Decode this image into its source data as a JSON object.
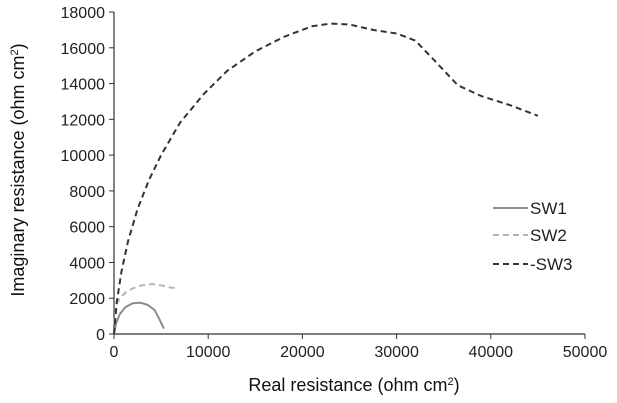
{
  "chart_data": {
    "type": "line",
    "xlabel_main": "Real resistance (ohm cm",
    "xlabel_sup": "2",
    "xlabel_end": ")",
    "ylabel_main": "Imaginary resistance (ohm cm",
    "ylabel_sup": "2",
    "ylabel_end": ")",
    "xlim": [
      0,
      50000
    ],
    "ylim": [
      0,
      18000
    ],
    "x_ticks": [
      0,
      10000,
      20000,
      30000,
      40000,
      50000
    ],
    "y_ticks": [
      0,
      2000,
      4000,
      6000,
      8000,
      10000,
      12000,
      14000,
      16000,
      18000
    ],
    "grid": false,
    "legend_position": "right",
    "series": [
      {
        "name": "SW1",
        "color": "#8c8c8c",
        "dash": "solid",
        "x": [
          0,
          200,
          600,
          1200,
          2000,
          2800,
          3600,
          4300,
          4800,
          5300
        ],
        "y": [
          0,
          550,
          1100,
          1500,
          1720,
          1750,
          1620,
          1350,
          850,
          300
        ]
      },
      {
        "name": "SW2",
        "color": "#b3b3b3",
        "dash": "dashed",
        "x": [
          0,
          100,
          300,
          700,
          1300,
          2000,
          2800,
          3600,
          4400,
          5200,
          6000,
          6700
        ],
        "y": [
          0,
          1100,
          1700,
          2050,
          2350,
          2550,
          2700,
          2780,
          2780,
          2700,
          2600,
          2550
        ]
      },
      {
        "name": "-SW3",
        "color": "#333333",
        "dash": "dashed",
        "x": [
          0,
          300,
          800,
          1500,
          2500,
          3700,
          5000,
          7000,
          9500,
          12000,
          15000,
          18000,
          21000,
          23000,
          25000,
          27500,
          30000,
          32000,
          34000,
          36500,
          39000,
          42000,
          45000
        ],
        "y": [
          0,
          1800,
          3500,
          5200,
          7000,
          8600,
          10000,
          11800,
          13400,
          14700,
          15800,
          16600,
          17200,
          17350,
          17300,
          17000,
          16800,
          16400,
          15300,
          13900,
          13300,
          12800,
          12200
        ]
      }
    ]
  }
}
